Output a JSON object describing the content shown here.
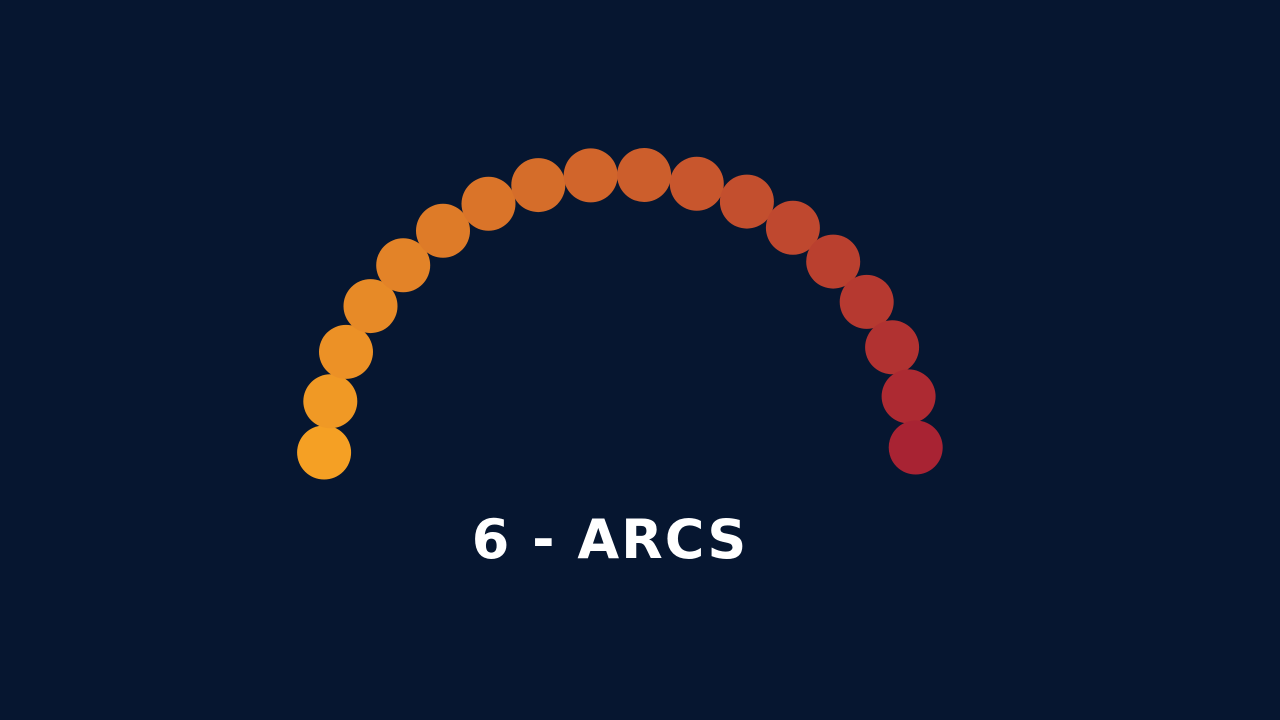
{
  "background_color": "#061630",
  "caption": "6 - ARCS",
  "arc": {
    "dot_count": 18,
    "color_start": "#f5a024",
    "color_end": "#a82333"
  }
}
